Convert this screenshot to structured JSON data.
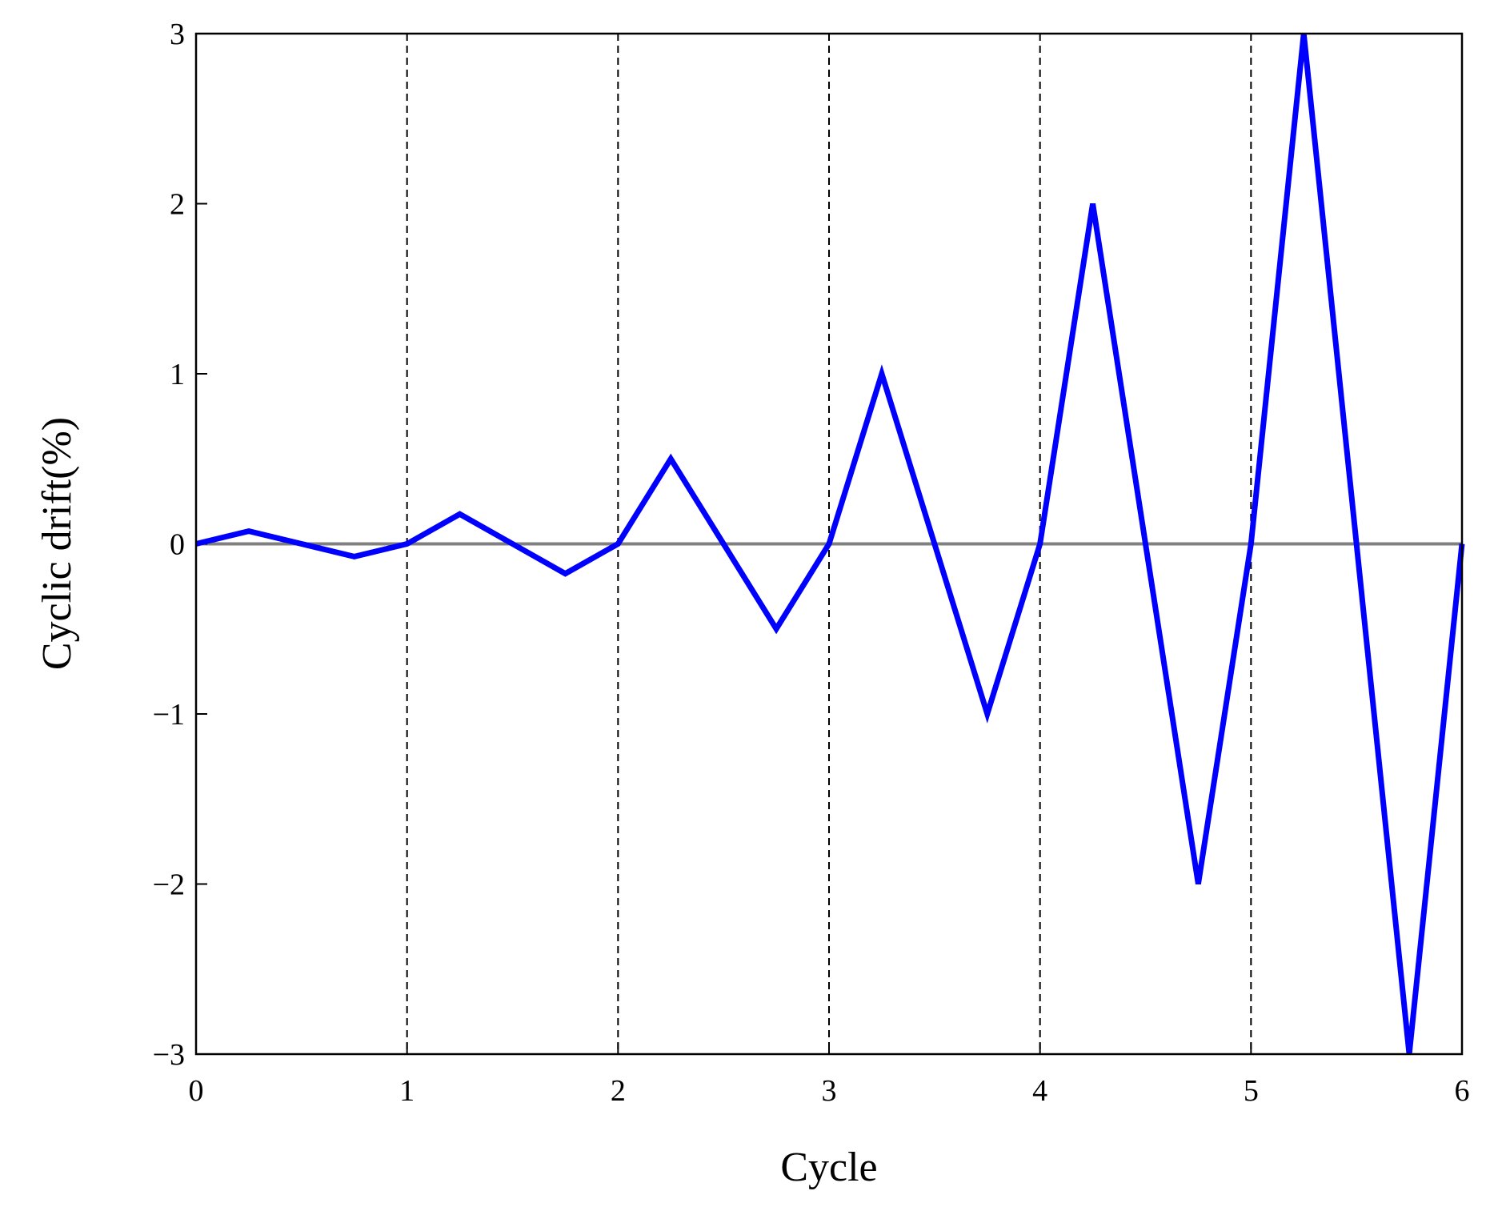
{
  "chart_data": {
    "type": "line",
    "x_label": "Cycle",
    "y_label": "Cyclic drift(%)",
    "x": [
      0,
      0.25,
      0.5,
      0.75,
      1,
      1.25,
      1.5,
      1.75,
      2,
      2.25,
      2.5,
      2.75,
      3,
      3.25,
      3.5,
      3.75,
      4,
      4.25,
      4.5,
      4.75,
      5,
      5.25,
      5.5,
      5.75,
      6
    ],
    "series": [
      {
        "color": "#0000ff",
        "values": [
          0,
          0.075,
          0,
          -0.075,
          0,
          0.175,
          0,
          -0.175,
          0,
          0.5,
          0,
          -0.5,
          0,
          1,
          0,
          -1,
          0,
          2,
          0,
          -2,
          0,
          3,
          0,
          -3,
          0
        ]
      }
    ],
    "xlim": [
      0,
      6
    ],
    "xticks": [
      0,
      1,
      2,
      3,
      4,
      5,
      6
    ],
    "ylim": [
      -3,
      3
    ],
    "yticks": [
      {
        "value": -3,
        "label": "−3"
      },
      {
        "value": -2,
        "label": "−2"
      },
      {
        "value": -1,
        "label": "−1"
      },
      0,
      1,
      2,
      3
    ],
    "vlines": [
      1,
      2,
      3,
      4,
      5
    ],
    "hline": 0,
    "hline_color": "#808080"
  }
}
